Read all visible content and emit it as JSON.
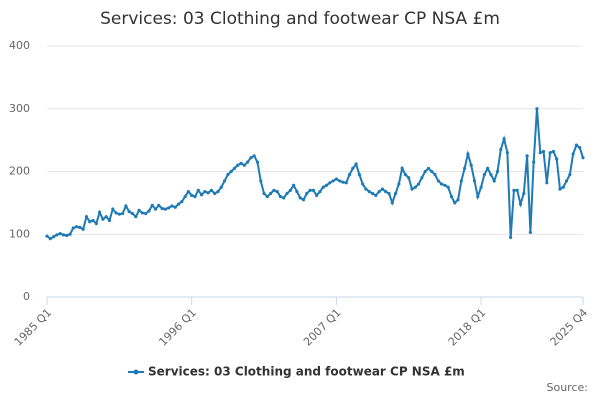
{
  "chart_data": {
    "type": "line",
    "title": "Services: 03 Clothing and footwear CP NSA £m",
    "source": "Source:",
    "categories": [
      "1985 Q1",
      null,
      null,
      null,
      null,
      null,
      null,
      null,
      null,
      null,
      null,
      null,
      null,
      null,
      null,
      null,
      null,
      null,
      null,
      null,
      null,
      null,
      null,
      null,
      null,
      null,
      null,
      null,
      null,
      null,
      null,
      null,
      null,
      null,
      null,
      null,
      null,
      null,
      null,
      null,
      null,
      null,
      null,
      null,
      "1996 Q1",
      null,
      null,
      null,
      null,
      null,
      null,
      null,
      null,
      null,
      null,
      null,
      null,
      null,
      null,
      null,
      null,
      null,
      null,
      null,
      null,
      null,
      null,
      null,
      null,
      null,
      null,
      null,
      null,
      null,
      null,
      null,
      null,
      null,
      null,
      null,
      null,
      null,
      null,
      null,
      null,
      null,
      null,
      null,
      "2007 Q1",
      null,
      null,
      null,
      null,
      null,
      null,
      null,
      null,
      null,
      null,
      null,
      null,
      null,
      null,
      null,
      null,
      null,
      null,
      null,
      null,
      null,
      null,
      null,
      null,
      null,
      null,
      null,
      null,
      null,
      null,
      null,
      null,
      null,
      null,
      null,
      null,
      null,
      null,
      null,
      null,
      null,
      null,
      null,
      "2018 Q1",
      null,
      null,
      null,
      null,
      null,
      null,
      null,
      null,
      null,
      null,
      null,
      null,
      null,
      null,
      null,
      null,
      null,
      null,
      null,
      null,
      null,
      null,
      null,
      null,
      null,
      null,
      null,
      null,
      null,
      null,
      "2025 Q4"
    ],
    "series": [
      {
        "name": "Services: 03 Clothing and footwear CP NSA £m",
        "color": "#1f7bb6",
        "values": [
          97,
          93,
          96,
          99,
          101,
          99,
          98,
          100,
          110,
          112,
          111,
          108,
          128,
          120,
          122,
          117,
          135,
          124,
          128,
          122,
          140,
          134,
          132,
          133,
          145,
          136,
          133,
          128,
          138,
          134,
          133,
          137,
          146,
          140,
          146,
          141,
          140,
          142,
          145,
          143,
          148,
          152,
          160,
          168,
          162,
          160,
          170,
          163,
          168,
          166,
          170,
          165,
          168,
          175,
          185,
          195,
          200,
          205,
          210,
          213,
          210,
          215,
          222,
          225,
          215,
          185,
          165,
          160,
          165,
          170,
          168,
          160,
          158,
          165,
          170,
          178,
          168,
          158,
          155,
          165,
          170,
          170,
          162,
          168,
          175,
          178,
          182,
          185,
          188,
          185,
          183,
          182,
          195,
          205,
          212,
          195,
          180,
          172,
          168,
          165,
          162,
          168,
          172,
          168,
          165,
          150,
          165,
          180,
          205,
          195,
          190,
          172,
          175,
          180,
          190,
          200,
          205,
          200,
          195,
          185,
          180,
          178,
          175,
          160,
          150,
          155,
          185,
          205,
          228,
          210,
          185,
          160,
          175,
          195,
          205,
          195,
          185,
          200,
          235,
          252,
          230,
          95,
          170,
          170,
          148,
          165,
          225,
          103,
          215,
          300,
          230,
          232,
          182,
          230,
          232,
          220,
          172,
          175,
          185,
          195,
          228,
          242,
          238,
          222
        ]
      }
    ],
    "ylim": [
      0,
      400
    ],
    "yticks": [
      0,
      100,
      200,
      300,
      400
    ],
    "grid": true
  }
}
